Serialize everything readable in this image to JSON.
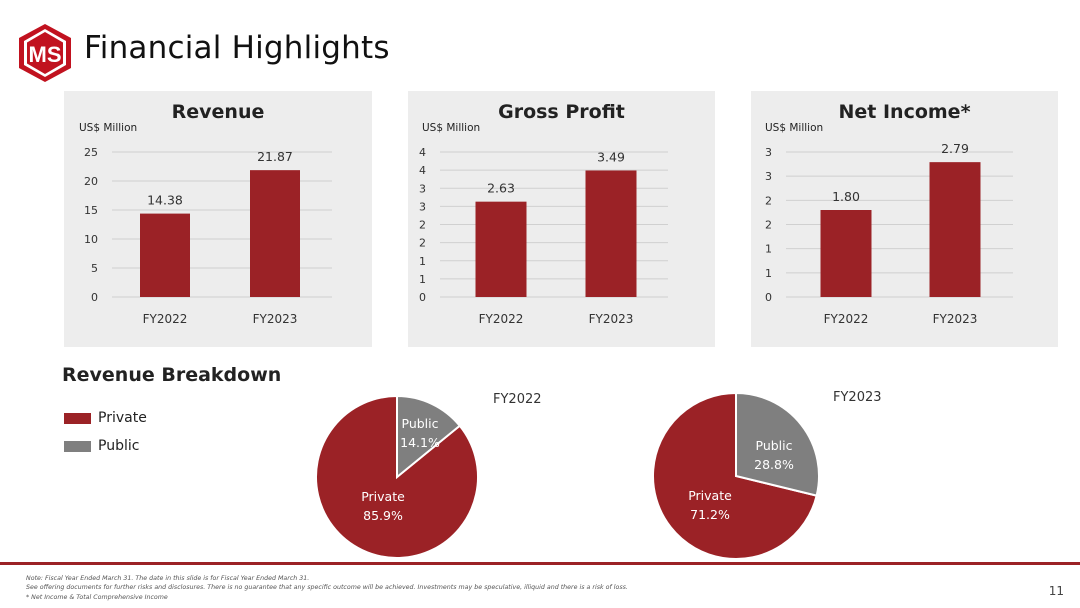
{
  "header": {
    "logo_text": "MS",
    "title": "Financial Highlights"
  },
  "colors": {
    "accent": "#9b2226",
    "public": "#7f7f7f",
    "card_bg": "#ededed",
    "grid": "#d0d0d0"
  },
  "charts_section": {
    "unit_label": "US$ Million"
  },
  "chart_data": [
    {
      "type": "bar",
      "title": "Revenue",
      "ylabel": "US$ Million",
      "categories": [
        "FY2022",
        "FY2023"
      ],
      "values": [
        14.38,
        21.87
      ],
      "value_labels": [
        "14.38",
        "21.87"
      ],
      "ylim": [
        0,
        25
      ],
      "ytick_labels": [
        "0",
        "5",
        "10",
        "15",
        "20",
        "25"
      ],
      "grid": true
    },
    {
      "type": "bar",
      "title": "Gross Profit",
      "ylabel": "US$ Million",
      "categories": [
        "FY2022",
        "FY2023"
      ],
      "values": [
        2.63,
        3.49
      ],
      "value_labels": [
        "2.63",
        "3.49"
      ],
      "ylim": [
        0,
        4
      ],
      "ytick_labels": [
        "0",
        "1",
        "1",
        "2",
        "2",
        "3",
        "3",
        "4",
        "4"
      ],
      "grid": true
    },
    {
      "type": "bar",
      "title": "Net Income*",
      "ylabel": "US$ Million",
      "categories": [
        "FY2022",
        "FY2023"
      ],
      "values": [
        1.8,
        2.79
      ],
      "value_labels": [
        "1.80",
        "2.79"
      ],
      "ylim": [
        0,
        3
      ],
      "ytick_labels": [
        "0",
        "1",
        "1",
        "2",
        "2",
        "3",
        "3"
      ],
      "grid": true
    },
    {
      "type": "pie",
      "title": "FY2022",
      "labels": [
        "Private",
        "Public"
      ],
      "values": [
        85.9,
        14.1
      ],
      "value_labels": [
        "85.9%",
        "14.1%"
      ]
    },
    {
      "type": "pie",
      "title": "FY2023",
      "labels": [
        "Private",
        "Public"
      ],
      "values": [
        71.2,
        28.8
      ],
      "value_labels": [
        "71.2%",
        "28.8%"
      ]
    }
  ],
  "revenue_breakdown": {
    "title": "Revenue Breakdown",
    "legend": [
      {
        "label": "Private",
        "color": "#9b2226"
      },
      {
        "label": "Public",
        "color": "#7f7f7f"
      }
    ]
  },
  "footer": {
    "notes": [
      "Note: Fiscal Year Ended March 31. The date in this slide is for Fiscal Year Ended March 31.",
      "See offering documents for further risks and disclosures. There is no guarantee that any specific outcome will be achieved. Investments may be speculative, illiquid and there is a risk of loss.",
      "* Net Income & Total Comprehensive Income"
    ],
    "page_number": "11"
  }
}
